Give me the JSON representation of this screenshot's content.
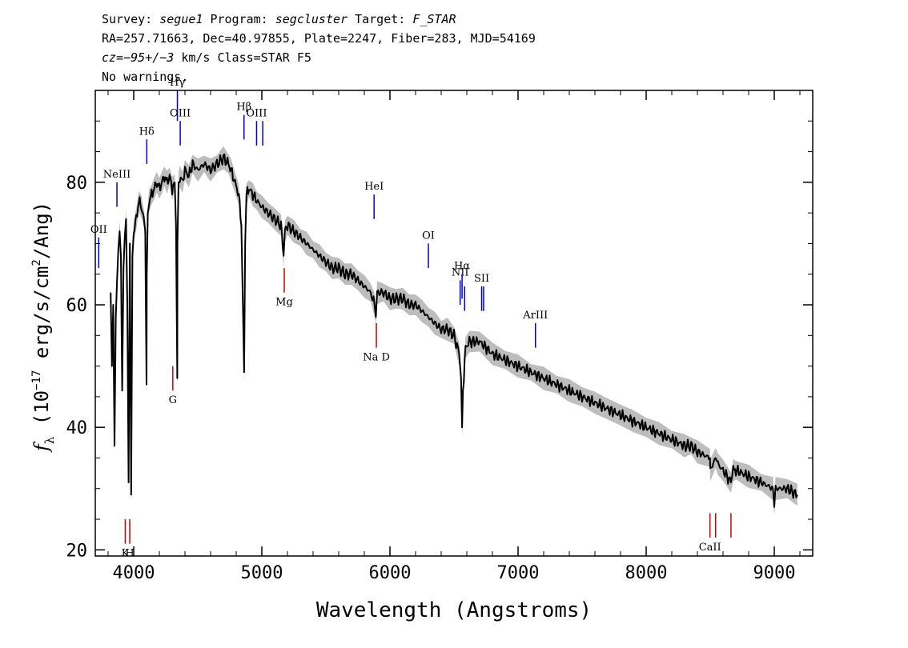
{
  "header": {
    "line1": {
      "survey_label": "Survey:",
      "survey": "segue1",
      "program_label": "Program:",
      "program": "segcluster",
      "target_label": "Target:",
      "target": "F_STAR"
    },
    "line2": "RA=257.71663, Dec=40.97855, Plate=2247, Fiber=283, MJD=54169",
    "line3": {
      "cz_prefix": "cz=",
      "cz": "−95+/−3",
      "cz_suffix": " km/s Class=STAR F5"
    },
    "line4": "No warnings."
  },
  "chart_data": {
    "type": "line",
    "xlabel": "Wavelength (Angstroms)",
    "ylabel": "f_λ (10^-17 erg/s/cm^2/Ang)",
    "xlim": [
      3700,
      9300
    ],
    "ylim": [
      19,
      95
    ],
    "xticks": [
      4000,
      5000,
      6000,
      7000,
      8000,
      9000
    ],
    "yticks": [
      20,
      40,
      60,
      80
    ],
    "grid": false,
    "series": [
      {
        "color": "#000000",
        "x": [
          3820,
          3830,
          3840,
          3850,
          3860,
          3870,
          3880,
          3890,
          3900,
          3910,
          3920,
          3930,
          3940,
          3950,
          3960,
          3970,
          3980,
          3990,
          4000,
          4020,
          4040,
          4060,
          4080,
          4090,
          4100,
          4102,
          4110,
          4120,
          4140,
          4160,
          4180,
          4200,
          4220,
          4240,
          4260,
          4280,
          4300,
          4320,
          4330,
          4340,
          4341,
          4350,
          4360,
          4380,
          4400,
          4430,
          4460,
          4500,
          4550,
          4600,
          4650,
          4700,
          4740,
          4760,
          4790,
          4820,
          4840,
          4855,
          4862,
          4870,
          4880,
          4900,
          4930,
          4960,
          5000,
          5050,
          5100,
          5150,
          5170,
          5180,
          5200,
          5250,
          5300,
          5350,
          5400,
          5450,
          5500,
          5550,
          5600,
          5650,
          5700,
          5750,
          5800,
          5850,
          5880,
          5890,
          5900,
          5950,
          6000,
          6050,
          6100,
          6150,
          6200,
          6250,
          6300,
          6350,
          6400,
          6450,
          6500,
          6540,
          6555,
          6563,
          6570,
          6590,
          6620,
          6700,
          6800,
          6900,
          7000,
          7100,
          7200,
          7300,
          7400,
          7500,
          7600,
          7700,
          7800,
          7900,
          8000,
          8100,
          8200,
          8300,
          8350,
          8400,
          8498,
          8500,
          8542,
          8560,
          8600,
          8662,
          8680,
          8700,
          8800,
          8900,
          8990,
          9000,
          9010,
          9100,
          9180
        ],
        "y": [
          62,
          50,
          60,
          37,
          58,
          64,
          69,
          72,
          68,
          46,
          66,
          71,
          74,
          60,
          31,
          70,
          29,
          68,
          72,
          74,
          77,
          76,
          74,
          72,
          47,
          65,
          75,
          77,
          78,
          79,
          80,
          79,
          80,
          81,
          80,
          81,
          79,
          80,
          73,
          48,
          70,
          80,
          81,
          80,
          82,
          81,
          83,
          82,
          83,
          82,
          83,
          84,
          83,
          82,
          80,
          78,
          73,
          57,
          49,
          70,
          78,
          79,
          78,
          77,
          76,
          75,
          74,
          73,
          68,
          72,
          73,
          72,
          71,
          70,
          69,
          68,
          67,
          66,
          66,
          65,
          65,
          64,
          63,
          62,
          60,
          58,
          62,
          62,
          61,
          61,
          61,
          60,
          60,
          59,
          58,
          57,
          56,
          56,
          55,
          52,
          48,
          40,
          46,
          53,
          54,
          54,
          52,
          51,
          50,
          49,
          48,
          47,
          46,
          45,
          44,
          43,
          42,
          41,
          40,
          39,
          38,
          37,
          37,
          36,
          35,
          33,
          35,
          34,
          33,
          31,
          33,
          33,
          32,
          31,
          30,
          27,
          30,
          30,
          29
        ]
      }
    ],
    "emission_lines": [
      {
        "label": "OII",
        "x": 3727,
        "y_top": 71,
        "y_bottom": 66,
        "color": "#0000cc"
      },
      {
        "label": "NeIII",
        "x": 3869,
        "y_top": 80,
        "y_bottom": 76,
        "color": "#0000cc"
      },
      {
        "label": "Hδ",
        "x": 4102,
        "y_top": 87,
        "y_bottom": 83,
        "color": "#0000cc"
      },
      {
        "label": "Hγ",
        "x": 4341,
        "y_top": 95,
        "y_bottom": 90,
        "color": "#0000cc"
      },
      {
        "label": "OIII",
        "x": 4363,
        "y_top": 90,
        "y_bottom": 86,
        "color": "#0000cc"
      },
      {
        "label": "Hβ",
        "x": 4861,
        "y_top": 91,
        "y_bottom": 87,
        "color": "#0000cc"
      },
      {
        "label": "OIII",
        "x": 4959,
        "y_top": 90,
        "y_bottom": 86,
        "color": "#0000cc"
      },
      {
        "label": "",
        "x": 5007,
        "y_top": 90,
        "y_bottom": 86,
        "color": "#0000cc"
      },
      {
        "label": "HeI",
        "x": 5876,
        "y_top": 78,
        "y_bottom": 74,
        "color": "#0000cc"
      },
      {
        "label": "OI",
        "x": 6300,
        "y_top": 70,
        "y_bottom": 66,
        "color": "#0000cc"
      },
      {
        "label": "NII",
        "x": 6548,
        "y_top": 64,
        "y_bottom": 60,
        "color": "#0000cc"
      },
      {
        "label": "Hα",
        "x": 6563,
        "y_top": 65,
        "y_bottom": 61,
        "color": "#0000cc"
      },
      {
        "label": "",
        "x": 6583,
        "y_top": 63,
        "y_bottom": 59,
        "color": "#0000cc"
      },
      {
        "label": "SII",
        "x": 6716,
        "y_top": 63,
        "y_bottom": 59,
        "color": "#0000cc"
      },
      {
        "label": "",
        "x": 6731,
        "y_top": 63,
        "y_bottom": 59,
        "color": "#0000cc"
      },
      {
        "label": "ArIII",
        "x": 7136,
        "y_top": 57,
        "y_bottom": 53,
        "color": "#0000cc"
      }
    ],
    "absorption_lines": [
      {
        "label": "K",
        "x": 3934,
        "y_top": 25,
        "y_bottom": 21,
        "color": "#cc0000"
      },
      {
        "label": "H",
        "x": 3969,
        "y_top": 25,
        "y_bottom": 21,
        "color": "#cc0000"
      },
      {
        "label": "G",
        "x": 4305,
        "y_top": 50,
        "y_bottom": 46,
        "color": "#cc0000"
      },
      {
        "label": "Mg",
        "x": 5175,
        "y_top": 66,
        "y_bottom": 62,
        "color": "#cc0000"
      },
      {
        "label": "Na D",
        "x": 5894,
        "y_top": 57,
        "y_bottom": 53,
        "color": "#cc0000"
      },
      {
        "label": "CaII",
        "x": 8498,
        "y_top": 26,
        "y_bottom": 22,
        "color": "#cc0000"
      },
      {
        "label": "",
        "x": 8542,
        "y_top": 26,
        "y_bottom": 22,
        "color": "#cc0000"
      },
      {
        "label": "",
        "x": 8662,
        "y_top": 26,
        "y_bottom": 22,
        "color": "#cc0000"
      }
    ],
    "colors": {
      "spectrum": "#000000",
      "error_band": "#bdbdbd",
      "emission": "#0000cc",
      "absorption": "#cc0000"
    }
  }
}
